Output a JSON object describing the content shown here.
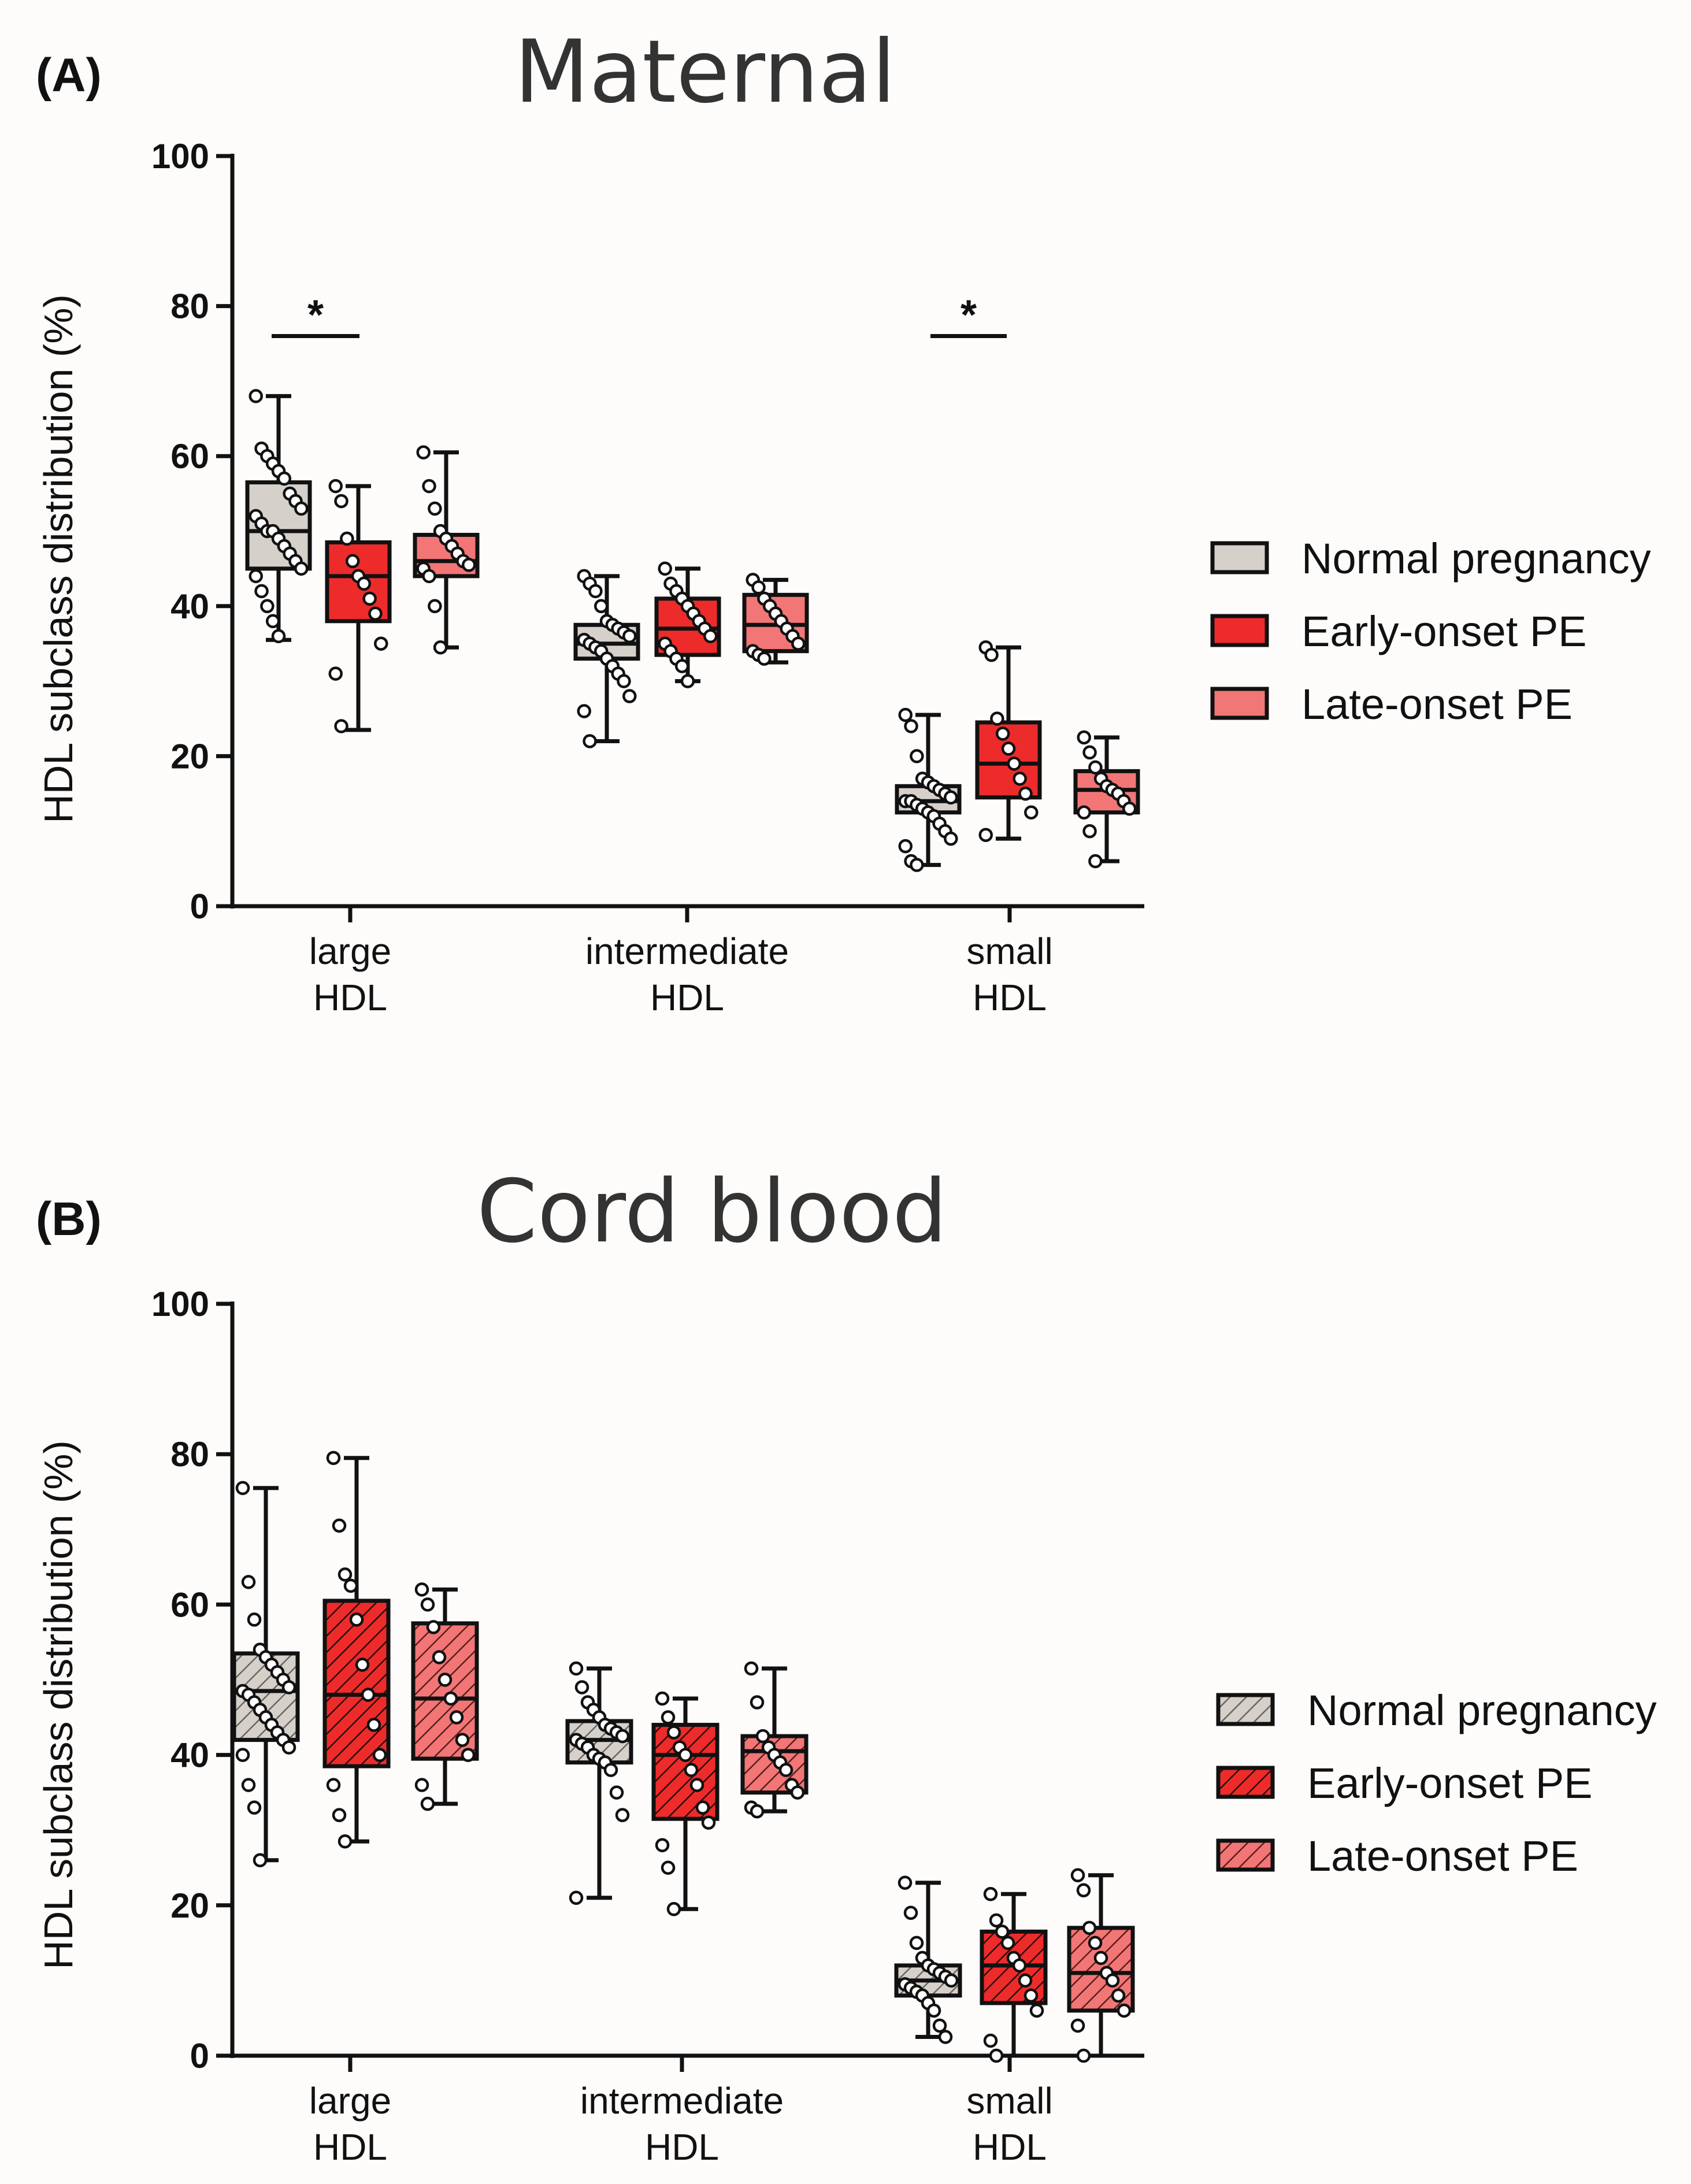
{
  "colors": {
    "normal": "#d6d0cb",
    "early": "#ee2b2b",
    "late": "#f27676",
    "axis": "#111111"
  },
  "legend": {
    "normal": "Normal pregnancy",
    "early": "Early-onset PE",
    "late": "Late-onset PE"
  },
  "chart_data": [
    {
      "panel": "(A)",
      "title": "Maternal",
      "type": "box",
      "hatched": false,
      "ylabel": "HDL subclass distribution  (%)",
      "ylim": [
        0,
        100
      ],
      "yticks": [
        "0",
        "20",
        "40",
        "60",
        "80",
        "100"
      ],
      "categories": [
        [
          "large",
          "HDL"
        ],
        [
          "intermediate",
          "HDL"
        ],
        [
          "small",
          "HDL"
        ]
      ],
      "significance": [
        {
          "category": 0,
          "label": "*",
          "y": 76
        },
        {
          "category": 2,
          "label": "*",
          "y": 76
        }
      ],
      "series": [
        {
          "name": "Normal pregnancy",
          "key": "normal",
          "boxes": [
            {
              "min": 35.5,
              "q1": 45,
              "median": 50,
              "q3": 56.5,
              "max": 68,
              "points": [
                68,
                61,
                60,
                59,
                58,
                57,
                55,
                54,
                53,
                52,
                51,
                50,
                50,
                49,
                48,
                47,
                46,
                45,
                44,
                42,
                40,
                38,
                36
              ]
            },
            {
              "min": 22,
              "q1": 33,
              "median": 35,
              "q3": 37.5,
              "max": 44,
              "points": [
                44,
                43,
                42,
                40,
                38,
                37.5,
                37,
                36.5,
                36,
                35.5,
                35,
                34.5,
                34,
                33,
                32,
                31,
                30,
                28,
                26,
                22
              ]
            },
            {
              "min": 5.5,
              "q1": 12.5,
              "median": 14,
              "q3": 16,
              "max": 25.5,
              "points": [
                25.5,
                24,
                20,
                17,
                16.5,
                16,
                15.5,
                15,
                14.5,
                14,
                14,
                13.5,
                13,
                12.5,
                12,
                11,
                10,
                9,
                8,
                6,
                5.5
              ]
            }
          ]
        },
        {
          "name": "Early-onset PE",
          "key": "early",
          "boxes": [
            {
              "min": 23.5,
              "q1": 38,
              "median": 44,
              "q3": 48.5,
              "max": 56,
              "points": [
                56,
                54,
                49,
                46,
                44,
                43,
                41,
                39,
                35,
                31,
                24
              ]
            },
            {
              "min": 30,
              "q1": 33.5,
              "median": 37,
              "q3": 41,
              "max": 45,
              "points": [
                45,
                43,
                42,
                41,
                40,
                39,
                38,
                37,
                36,
                35,
                34,
                33,
                32,
                30
              ]
            },
            {
              "min": 9,
              "q1": 14.5,
              "median": 19,
              "q3": 24.5,
              "max": 34.5,
              "points": [
                34.5,
                33.5,
                25,
                23,
                21,
                19,
                17,
                15,
                12.5,
                9.5
              ]
            }
          ]
        },
        {
          "name": "Late-onset PE",
          "key": "late",
          "boxes": [
            {
              "min": 34.5,
              "q1": 44,
              "median": 46,
              "q3": 49.5,
              "max": 60.5,
              "points": [
                60.5,
                56,
                53,
                50,
                49,
                48,
                47,
                46,
                45.5,
                45,
                44,
                40,
                34.5
              ]
            },
            {
              "min": 32.5,
              "q1": 34,
              "median": 37.5,
              "q3": 41.5,
              "max": 43.5,
              "points": [
                43.5,
                42.5,
                41,
                40,
                39,
                38,
                37,
                36,
                35,
                34,
                33.5,
                33
              ]
            },
            {
              "min": 6,
              "q1": 12.5,
              "median": 15.5,
              "q3": 18,
              "max": 22.5,
              "points": [
                22.5,
                20.5,
                18.5,
                17,
                16,
                15.5,
                15,
                14,
                13,
                12.5,
                10,
                6
              ]
            }
          ]
        }
      ]
    },
    {
      "panel": "(B)",
      "title": "Cord blood",
      "type": "box",
      "hatched": true,
      "ylabel": "HDL subclass distribution  (%)",
      "ylim": [
        0,
        100
      ],
      "yticks": [
        "0",
        "20",
        "40",
        "60",
        "80",
        "100"
      ],
      "categories": [
        [
          "large",
          "HDL"
        ],
        [
          "intermediate",
          "HDL"
        ],
        [
          "small",
          "HDL"
        ]
      ],
      "significance": [],
      "series": [
        {
          "name": "Normal pregnancy",
          "key": "normal",
          "boxes": [
            {
              "min": 26,
              "q1": 42,
              "median": 48.5,
              "q3": 53.5,
              "max": 75.5,
              "points": [
                75.5,
                63,
                58,
                54,
                53,
                52,
                51,
                50,
                49,
                48.5,
                48,
                47,
                46,
                45,
                44,
                43,
                42,
                41,
                40,
                36,
                33,
                26
              ]
            },
            {
              "min": 21,
              "q1": 39,
              "median": 42,
              "q3": 44.5,
              "max": 51.5,
              "points": [
                51.5,
                49,
                47,
                46,
                45,
                44,
                43.5,
                43,
                42.5,
                42,
                41.5,
                41,
                40,
                39.5,
                39,
                38,
                35,
                32,
                21
              ]
            },
            {
              "min": 2.5,
              "q1": 8,
              "median": 10,
              "q3": 12,
              "max": 23,
              "points": [
                23,
                19,
                15,
                13,
                12,
                11.5,
                11,
                10.5,
                10,
                9.5,
                9,
                8.5,
                8,
                7,
                6,
                4,
                2.5
              ]
            }
          ]
        },
        {
          "name": "Early-onset PE",
          "key": "early",
          "boxes": [
            {
              "min": 28.5,
              "q1": 38.5,
              "median": 48,
              "q3": 60.5,
              "max": 79.5,
              "points": [
                79.5,
                70.5,
                64,
                62.5,
                58,
                52,
                48,
                44,
                40,
                36,
                32,
                28.5
              ]
            },
            {
              "min": 19.5,
              "q1": 31.5,
              "median": 40,
              "q3": 44,
              "max": 47.5,
              "points": [
                47.5,
                45,
                43,
                41,
                40,
                38,
                36,
                33,
                31,
                28,
                25,
                19.5
              ]
            },
            {
              "min": 0,
              "q1": 7,
              "median": 12,
              "q3": 16.5,
              "max": 21.5,
              "points": [
                21.5,
                18,
                16.5,
                15,
                13,
                12,
                10,
                8,
                6,
                2,
                0
              ]
            }
          ]
        },
        {
          "name": "Late-onset PE",
          "key": "late",
          "boxes": [
            {
              "min": 33.5,
              "q1": 39.5,
              "median": 47.5,
              "q3": 57.5,
              "max": 62,
              "points": [
                62,
                60,
                57,
                53,
                50,
                47.5,
                45,
                42,
                40,
                36,
                33.5
              ]
            },
            {
              "min": 32.5,
              "q1": 35,
              "median": 40.5,
              "q3": 42.5,
              "max": 51.5,
              "points": [
                51.5,
                47,
                42.5,
                41,
                40,
                39,
                38,
                36,
                35,
                33,
                32.5
              ]
            },
            {
              "min": 0,
              "q1": 6,
              "median": 11,
              "q3": 17,
              "max": 24,
              "points": [
                24,
                22,
                17,
                15,
                13,
                11,
                10,
                8,
                6,
                4,
                0
              ]
            }
          ]
        }
      ]
    }
  ]
}
